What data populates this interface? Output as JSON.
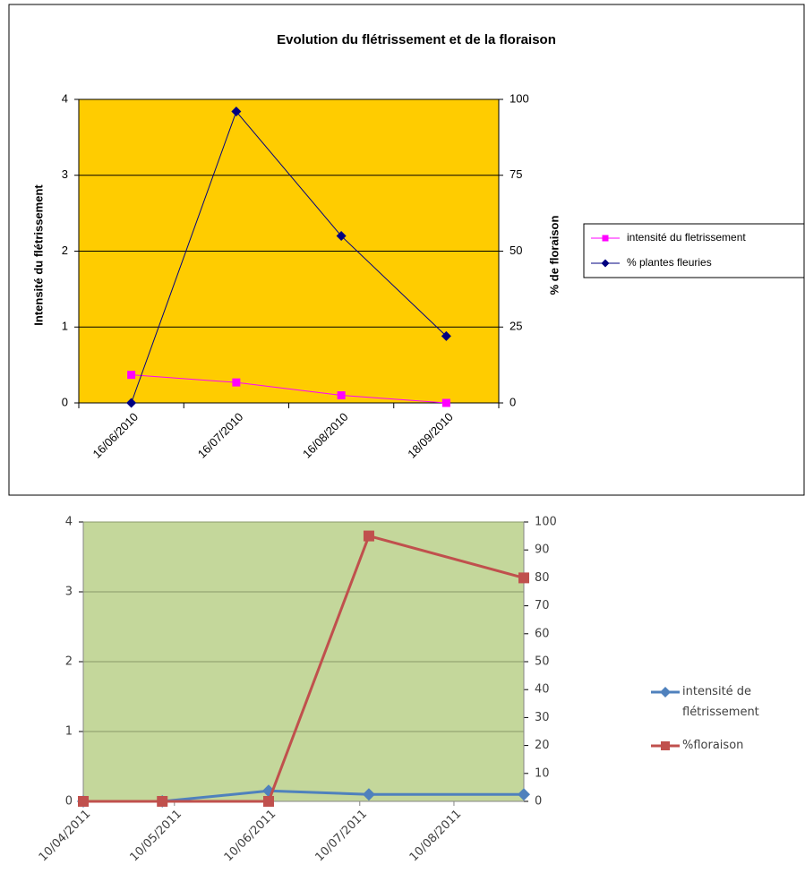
{
  "chart_data": [
    {
      "type": "line",
      "title": "Evolution du flétrissement et de la floraison",
      "y_label": "Intensité  du flétrissement",
      "y2_label": "% de floraison",
      "categories": [
        "16/06/2010",
        "16/07/2010",
        "16/08/2010",
        "18/09/2010"
      ],
      "series": [
        {
          "name": "intensité du fletrissement",
          "color": "#ff00ff",
          "values": [
            0.37,
            0.27,
            0.1,
            0
          ]
        },
        {
          "name": "% plantes fleuries",
          "color": "#000080",
          "axis": "y2",
          "values": [
            0,
            96,
            55,
            22
          ]
        }
      ],
      "ylim": [
        0,
        4
      ],
      "yticks": [
        0,
        1,
        2,
        3,
        4
      ],
      "y2lim": [
        0,
        100
      ],
      "y2ticks": [
        0,
        25,
        50,
        75,
        100
      ],
      "grid": true,
      "legend": "right",
      "background": "#ffcc00"
    },
    {
      "type": "line",
      "x": [
        "10/04/2011",
        "06/05/2011",
        "10/06/2011",
        "13/07/2011",
        "02/09/2011"
      ],
      "xlim": [
        "10/04/2011",
        "02/09/2011"
      ],
      "xticks": [
        "10/04/2011",
        "10/05/2011",
        "10/06/2011",
        "10/07/2011",
        "10/08/2011"
      ],
      "series": [
        {
          "name": "intensité de flétrissement",
          "color": "#4f81bd",
          "values": [
            0,
            0,
            0.15,
            0.1,
            0.1
          ]
        },
        {
          "name": "%floraison",
          "color": "#c0504d",
          "axis": "y2",
          "values": [
            0,
            0,
            0,
            95,
            80
          ]
        }
      ],
      "ylim": [
        0,
        4
      ],
      "yticks": [
        0,
        1,
        2,
        3,
        4
      ],
      "y2lim": [
        0,
        100
      ],
      "y2ticks": [
        0,
        10,
        20,
        30,
        40,
        50,
        60,
        70,
        80,
        90,
        100
      ],
      "grid": true,
      "legend": "right",
      "background": "#c4d79b"
    }
  ]
}
